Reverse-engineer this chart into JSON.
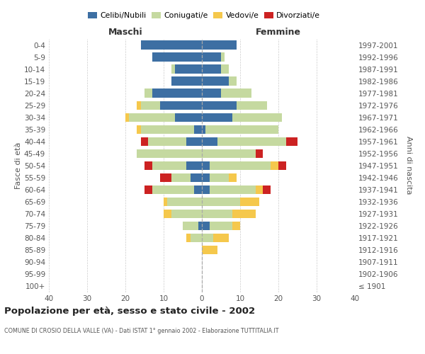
{
  "age_groups": [
    "100+",
    "95-99",
    "90-94",
    "85-89",
    "80-84",
    "75-79",
    "70-74",
    "65-69",
    "60-64",
    "55-59",
    "50-54",
    "45-49",
    "40-44",
    "35-39",
    "30-34",
    "25-29",
    "20-24",
    "15-19",
    "10-14",
    "5-9",
    "0-4"
  ],
  "birth_years": [
    "≤ 1901",
    "1902-1906",
    "1907-1911",
    "1912-1916",
    "1917-1921",
    "1922-1926",
    "1927-1931",
    "1932-1936",
    "1937-1941",
    "1942-1946",
    "1947-1951",
    "1952-1956",
    "1957-1961",
    "1962-1966",
    "1967-1971",
    "1972-1976",
    "1977-1981",
    "1982-1986",
    "1987-1991",
    "1992-1996",
    "1997-2001"
  ],
  "males_celibi": [
    0,
    0,
    0,
    0,
    0,
    1,
    0,
    0,
    2,
    3,
    4,
    0,
    4,
    2,
    7,
    11,
    13,
    8,
    7,
    13,
    16
  ],
  "males_coniugati": [
    0,
    0,
    0,
    0,
    3,
    4,
    8,
    9,
    11,
    5,
    9,
    17,
    10,
    14,
    12,
    5,
    2,
    0,
    1,
    0,
    0
  ],
  "males_vedovi": [
    0,
    0,
    0,
    0,
    1,
    0,
    2,
    1,
    0,
    0,
    0,
    0,
    0,
    1,
    1,
    1,
    0,
    0,
    0,
    0,
    0
  ],
  "males_divorziati": [
    0,
    0,
    0,
    0,
    0,
    0,
    0,
    0,
    2,
    3,
    2,
    0,
    2,
    0,
    0,
    0,
    0,
    0,
    0,
    0,
    0
  ],
  "females_nubili": [
    0,
    0,
    0,
    0,
    0,
    2,
    0,
    0,
    2,
    2,
    2,
    0,
    4,
    1,
    8,
    9,
    5,
    7,
    5,
    5,
    9
  ],
  "females_coniugate": [
    0,
    0,
    0,
    0,
    3,
    6,
    8,
    10,
    12,
    5,
    16,
    14,
    18,
    19,
    13,
    8,
    8,
    2,
    2,
    1,
    0
  ],
  "females_vedove": [
    0,
    0,
    0,
    4,
    4,
    2,
    6,
    5,
    2,
    2,
    2,
    0,
    0,
    0,
    0,
    0,
    0,
    0,
    0,
    0,
    0
  ],
  "females_divorziate": [
    0,
    0,
    0,
    0,
    0,
    0,
    0,
    0,
    2,
    0,
    2,
    2,
    3,
    0,
    0,
    0,
    0,
    0,
    0,
    0,
    0
  ],
  "color_celibi": "#3d6fa3",
  "color_coniugati": "#c5d9a0",
  "color_vedovi": "#f5c84c",
  "color_divorziati": "#cc2222",
  "title": "Popolazione per età, sesso e stato civile - 2002",
  "subtitle": "COMUNE DI CROSIO DELLA VALLE (VA) - Dati ISTAT 1° gennaio 2002 - Elaborazione TUTTITALIA.IT",
  "label_maschi": "Maschi",
  "label_femmine": "Femmine",
  "ylabel_left": "Fasce di età",
  "ylabel_right": "Anni di nascita",
  "legend_labels": [
    "Celibi/Nubili",
    "Coniugati/e",
    "Vedovi/e",
    "Divorziati/e"
  ],
  "xlim": 40
}
